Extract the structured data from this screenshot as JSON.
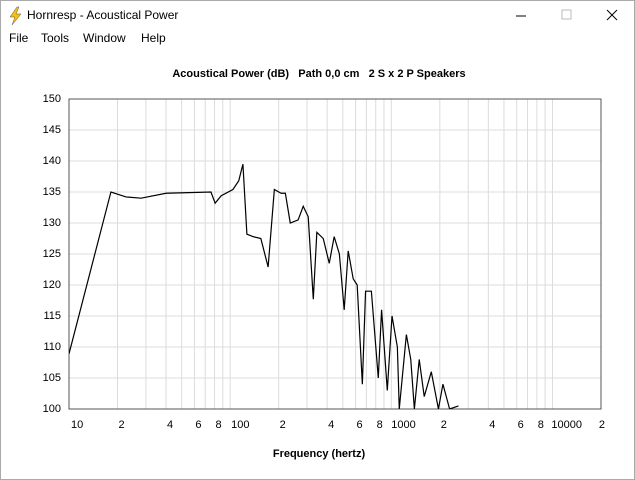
{
  "window": {
    "title": "Hornresp - Acoustical Power",
    "menu": [
      "File",
      "Tools",
      "Window",
      "Help"
    ]
  },
  "chart_data": {
    "type": "line",
    "title": "Acoustical Power (dB)   Path 0,0 cm   2 S x 2 P Speakers",
    "x_label": "Frequency (hertz)",
    "log_x": true,
    "grid": true,
    "color": "#000000",
    "x": [
      10,
      18.2,
      22.6,
      28,
      40,
      76,
      80.7,
      88,
      104,
      113,
      120,
      127,
      139,
      155,
      172,
      188,
      207,
      220,
      236,
      264,
      284,
      305,
      328,
      345,
      378,
      412,
      442,
      476,
      510,
      540,
      580,
      614,
      661,
      692,
      752,
      830,
      870,
      944,
      1010,
      1090,
      1120,
      1240,
      1320,
      1390,
      1490,
      1600,
      1770,
      1960,
      2090,
      2300,
      2610
    ],
    "values": [
      108.9,
      135,
      134.2,
      134,
      134.8,
      135,
      133.2,
      134.4,
      135.4,
      136.8,
      139.5,
      128.2,
      127.8,
      127.5,
      122.9,
      135.4,
      134.8,
      134.8,
      130,
      130.5,
      132.7,
      131,
      117.7,
      128.5,
      127.5,
      123.5,
      127.8,
      125,
      116,
      125.5,
      121,
      120,
      104,
      119,
      119,
      105,
      116,
      103,
      115,
      110,
      100,
      112,
      108,
      100,
      108,
      102,
      106,
      100,
      104,
      100,
      100.5
    ],
    "xlim": [
      10,
      20000
    ],
    "ylim": [
      100,
      150
    ],
    "xticks": [
      10,
      {
        "value": 20,
        "label": "2"
      },
      {
        "value": 40,
        "label": "4"
      },
      {
        "value": 60,
        "label": "6"
      },
      {
        "value": 80,
        "label": "8"
      },
      100,
      {
        "value": 200,
        "label": "2"
      },
      {
        "value": 400,
        "label": "4"
      },
      {
        "value": 600,
        "label": "6"
      },
      {
        "value": 800,
        "label": "8"
      },
      1000,
      {
        "value": 2000,
        "label": "2"
      },
      {
        "value": 4000,
        "label": "4"
      },
      {
        "value": 6000,
        "label": "6"
      },
      {
        "value": 8000,
        "label": "8"
      },
      10000,
      {
        "value": 20000,
        "label": "2"
      }
    ],
    "xminor": [
      30,
      50,
      70,
      90,
      300,
      500,
      700,
      900,
      3000,
      5000,
      7000,
      9000
    ],
    "yticks": [
      100,
      105,
      110,
      115,
      120,
      125,
      130,
      135,
      140,
      145,
      150
    ]
  }
}
